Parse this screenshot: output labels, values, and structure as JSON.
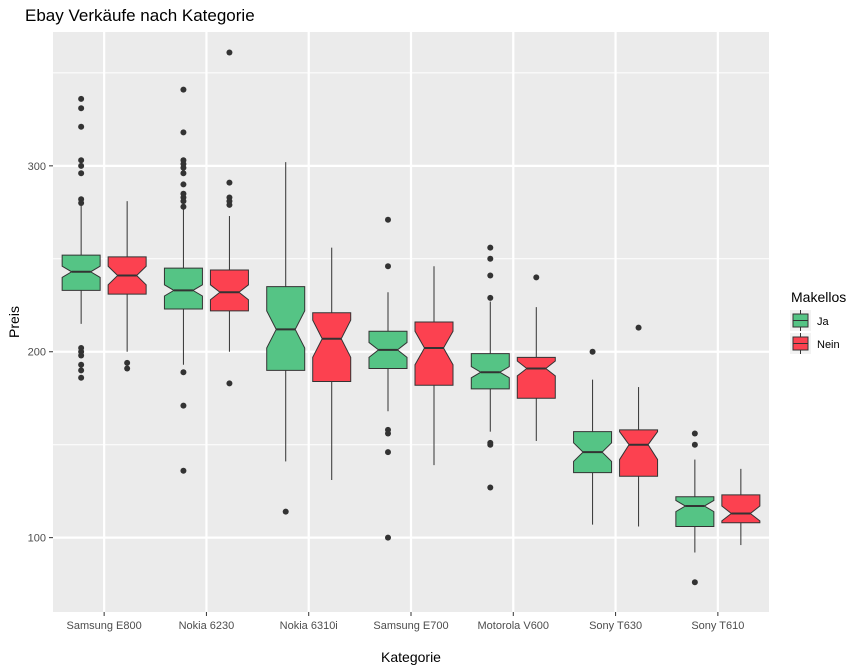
{
  "chart_data": {
    "type": "boxplot",
    "title": "Ebay Verkäufe nach Kategorie",
    "xlabel": "Kategorie",
    "ylabel": "Preis",
    "ylim": [
      60,
      372
    ],
    "yticks": [
      100,
      200,
      300
    ],
    "grid": true,
    "notched": true,
    "legend": {
      "title": "Makellos",
      "placement": "right",
      "entries": [
        {
          "label": "Ja",
          "color": "#55C485"
        },
        {
          "label": "Nein",
          "color": "#FC4150"
        }
      ]
    },
    "categories": [
      "Samsung E800",
      "Nokia 6230",
      "Nokia 6310i",
      "Samsung E700",
      "Motorola V600",
      "Sony T630",
      "Sony T610"
    ],
    "series": [
      {
        "name": "Ja",
        "color": "#55C485",
        "boxes": [
          {
            "lower": 215,
            "q1": 233,
            "median": 243,
            "q3": 252,
            "upper": 280,
            "notch_low": 240,
            "notch_high": 246,
            "outliers": [
              336,
              331,
              321,
              303,
              300,
              296,
              282,
              280,
              202,
              200,
              198,
              193,
              190,
              186
            ]
          },
          {
            "lower": 193,
            "q1": 223,
            "median": 233,
            "q3": 245,
            "upper": 277,
            "notch_low": 230,
            "notch_high": 236,
            "outliers": [
              341,
              318,
              303,
              301,
              299,
              296,
              290,
              285,
              283,
              281,
              278,
              189,
              171,
              136
            ]
          },
          {
            "lower": 141,
            "q1": 190,
            "median": 212,
            "q3": 235,
            "upper": 302,
            "notch_low": 202,
            "notch_high": 222,
            "outliers": [
              114
            ]
          },
          {
            "lower": 168,
            "q1": 191,
            "median": 201,
            "q3": 211,
            "upper": 232,
            "notch_low": 197,
            "notch_high": 205,
            "outliers": [
              271,
              246,
              158,
              156,
              146,
              100
            ]
          },
          {
            "lower": 157,
            "q1": 180,
            "median": 189,
            "q3": 199,
            "upper": 227,
            "notch_low": 186,
            "notch_high": 192,
            "outliers": [
              256,
              250,
              241,
              229,
              151,
              150,
              127
            ]
          },
          {
            "lower": 107,
            "q1": 135,
            "median": 146,
            "q3": 157,
            "upper": 185,
            "notch_low": 141,
            "notch_high": 151,
            "outliers": [
              200
            ]
          },
          {
            "lower": 92,
            "q1": 106,
            "median": 117,
            "q3": 122,
            "upper": 142,
            "notch_low": 114,
            "notch_high": 120,
            "outliers": [
              156,
              150,
              76
            ]
          }
        ]
      },
      {
        "name": "Nein",
        "color": "#FC4150",
        "boxes": [
          {
            "lower": 200,
            "q1": 231,
            "median": 241,
            "q3": 251,
            "upper": 281,
            "notch_low": 236,
            "notch_high": 246,
            "outliers": [
              194,
              191
            ]
          },
          {
            "lower": 200,
            "q1": 222,
            "median": 232,
            "q3": 244,
            "upper": 273,
            "notch_low": 228,
            "notch_high": 236,
            "outliers": [
              361,
              291,
              283,
              281,
              279,
              183
            ]
          },
          {
            "lower": 131,
            "q1": 184,
            "median": 207,
            "q3": 221,
            "upper": 256,
            "notch_low": 197,
            "notch_high": 217,
            "outliers": []
          },
          {
            "lower": 139,
            "q1": 182,
            "median": 202,
            "q3": 216,
            "upper": 246,
            "notch_low": 193,
            "notch_high": 211,
            "outliers": []
          },
          {
            "lower": 152,
            "q1": 175,
            "median": 191,
            "q3": 197,
            "upper": 224,
            "notch_low": 187,
            "notch_high": 195,
            "outliers": [
              240
            ]
          },
          {
            "lower": 106,
            "q1": 133,
            "median": 150,
            "q3": 158,
            "upper": 181,
            "notch_low": 142,
            "notch_high": 157,
            "outliers": [
              213
            ]
          },
          {
            "lower": 96,
            "q1": 108,
            "median": 113,
            "q3": 123,
            "upper": 137,
            "notch_low": 109,
            "notch_high": 117,
            "outliers": []
          }
        ]
      }
    ]
  }
}
